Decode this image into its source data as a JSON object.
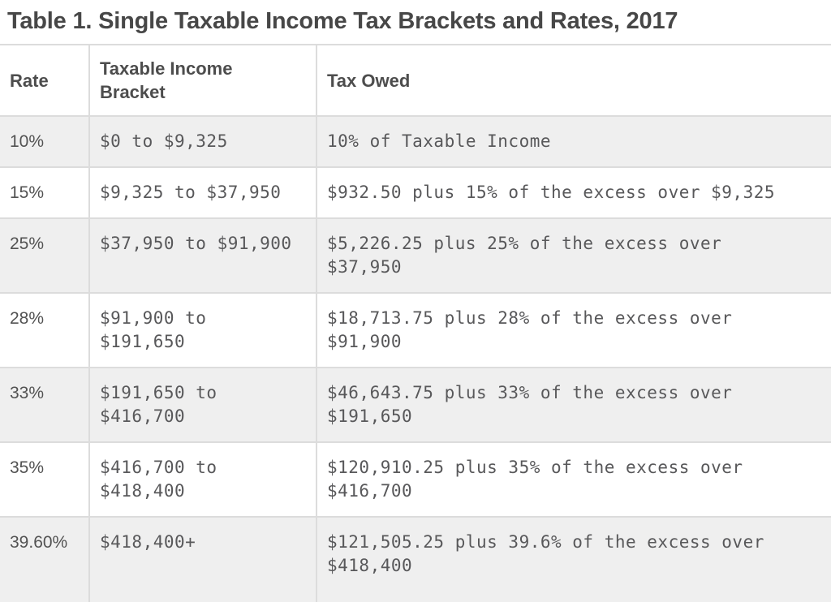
{
  "title": "Table 1. Single Taxable Income Tax Brackets and Rates, 2017",
  "colors": {
    "title_text": "#474747",
    "header_text": "#4d4d4d",
    "body_text": "#58585a",
    "shaded_row_background": "#efefef",
    "border": "#dcdcdc"
  },
  "table": {
    "columns": {
      "rate": "Rate",
      "bracket": "Taxable Income\nBracket",
      "tax_owed": "Tax Owed"
    },
    "rows": [
      {
        "rate": "10%",
        "bracket": "$0 to $9,325",
        "tax_owed": "10% of Taxable Income"
      },
      {
        "rate": "15%",
        "bracket": "$9,325 to $37,950",
        "tax_owed": "$932.50 plus 15% of the excess over $9,325"
      },
      {
        "rate": "25%",
        "bracket": "$37,950 to $91,900",
        "tax_owed": "$5,226.25 plus 25% of the excess over\n$37,950"
      },
      {
        "rate": "28%",
        "bracket": "$91,900 to\n$191,650",
        "tax_owed": "$18,713.75 plus 28% of the excess over\n$91,900"
      },
      {
        "rate": "33%",
        "bracket": "$191,650 to\n$416,700",
        "tax_owed": "$46,643.75 plus 33% of the excess over\n$191,650"
      },
      {
        "rate": "35%",
        "bracket": "$416,700 to\n$418,400",
        "tax_owed": "$120,910.25 plus 35% of the excess over\n$416,700"
      },
      {
        "rate": "39.60%",
        "bracket": "$418,400+",
        "tax_owed": "$121,505.25 plus 39.6% of the excess over\n$418,400"
      }
    ]
  }
}
